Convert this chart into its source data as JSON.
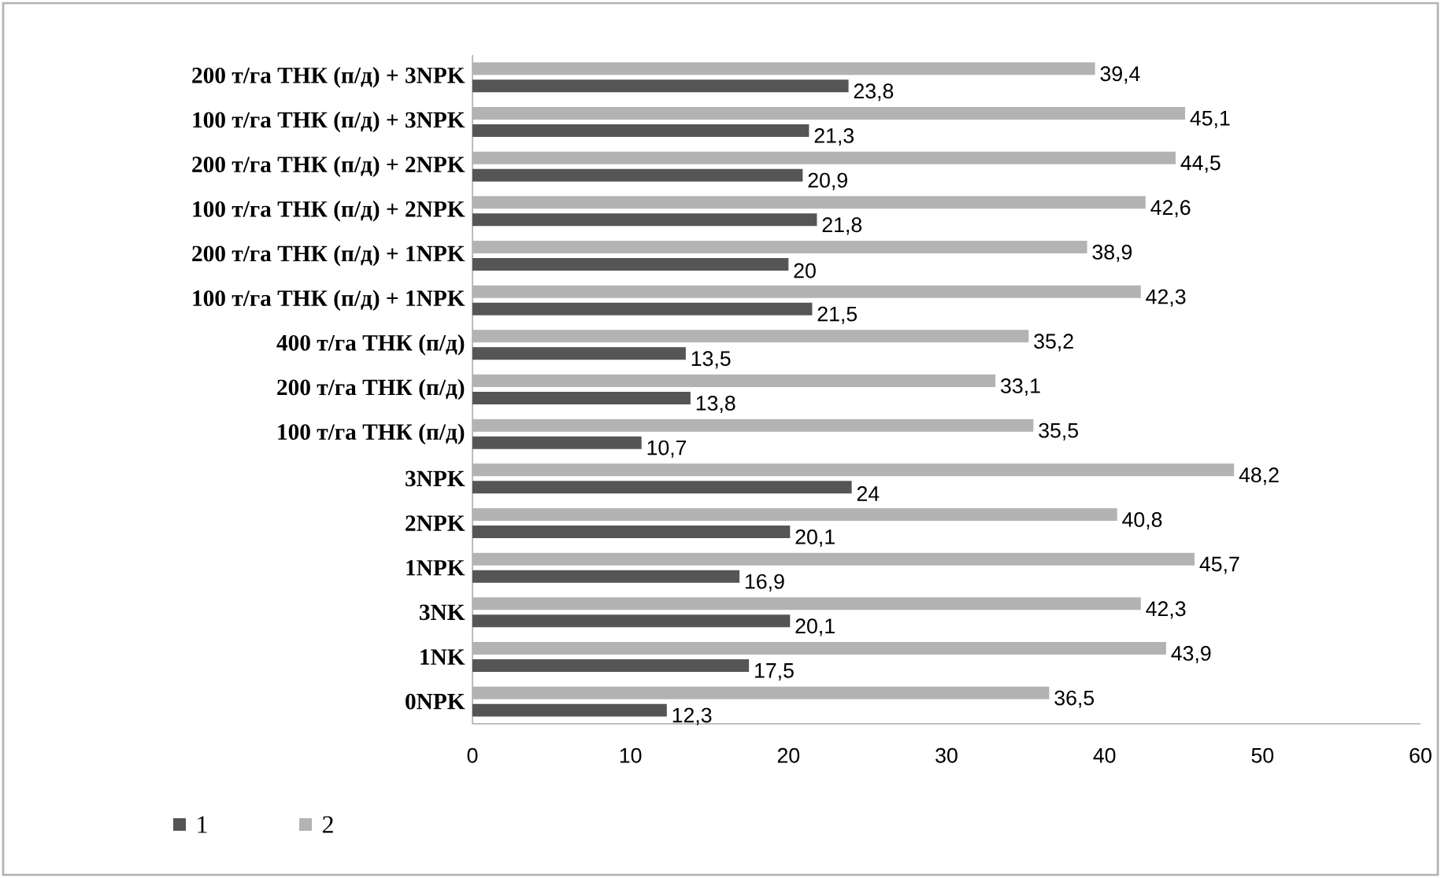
{
  "chart_data": {
    "type": "bar",
    "orientation": "horizontal",
    "categories": [
      "200 т/га ТНК (п/д) + 3NPK",
      "100 т/га ТНК (п/д) + 3NPK",
      "200 т/га ТНК (п/д) + 2NPK",
      "100 т/га ТНК (п/д) + 2NPK",
      "200 т/га ТНК (п/д) + 1NPK",
      "100 т/га ТНК (п/д) + 1NPK",
      "400 т/га ТНК (п/д)",
      "200 т/га ТНК (п/д)",
      "100 т/га ТНК (п/д)",
      "3NPK",
      "2NPK",
      "1NPK",
      "3NK",
      "1NK",
      "0NPK"
    ],
    "series": [
      {
        "name": "1",
        "color": "#555555",
        "values": [
          23.8,
          21.3,
          20.9,
          21.8,
          20,
          21.5,
          13.5,
          13.8,
          10.7,
          24,
          20.1,
          16.9,
          20.1,
          17.5,
          12.3
        ],
        "value_labels": [
          "23,8",
          "21,3",
          "20,9",
          "21,8",
          "20",
          "21,5",
          "13,5",
          "13,8",
          "10,7",
          "24",
          "20,1",
          "16,9",
          "20,1",
          "17,5",
          "12,3"
        ]
      },
      {
        "name": "2",
        "color": "#b3b3b3",
        "values": [
          39.4,
          45.1,
          44.5,
          42.6,
          38.9,
          42.3,
          35.2,
          33.1,
          35.5,
          48.2,
          40.8,
          45.7,
          42.3,
          43.9,
          36.5
        ],
        "value_labels": [
          "39,4",
          "45,1",
          "44,5",
          "42,6",
          "38,9",
          "42,3",
          "35,2",
          "33,1",
          "35,5",
          "48,2",
          "40,8",
          "45,7",
          "42,3",
          "43,9",
          "36,5"
        ]
      }
    ],
    "xlim": [
      0,
      60
    ],
    "xticks": [
      0,
      10,
      20,
      30,
      40,
      50,
      60
    ],
    "grid": false,
    "legend": "bottom left"
  }
}
